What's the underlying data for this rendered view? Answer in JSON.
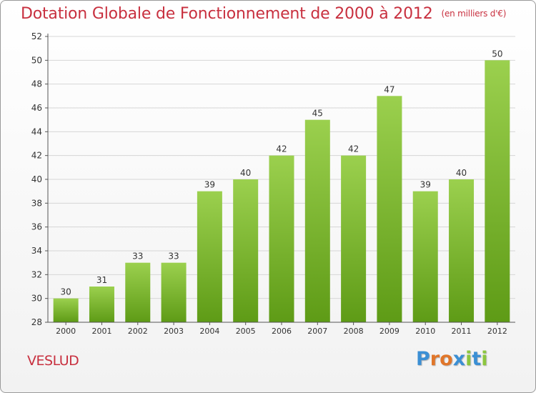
{
  "title": "Dotation Globale de Fonctionnement de 2000 à 2012",
  "subtitle": "(en milliers d'€)",
  "commune": "VESLUD",
  "logo": {
    "text": "Proxiti",
    "letter_colors": [
      "#3b8fd4",
      "#e0762a",
      "#e0762a",
      "#3b8fd4",
      "#8cc63f",
      "#3b8fd4",
      "#8cc63f"
    ]
  },
  "chart_data": {
    "type": "bar",
    "title": "Dotation Globale de Fonctionnement de 2000 à 2012",
    "subtitle": "(en milliers d'€)",
    "xlabel": "",
    "ylabel": "",
    "categories": [
      "2000",
      "2001",
      "2002",
      "2003",
      "2004",
      "2005",
      "2006",
      "2007",
      "2008",
      "2009",
      "2010",
      "2011",
      "2012"
    ],
    "values": [
      30,
      31,
      33,
      33,
      39,
      40,
      42,
      45,
      42,
      47,
      39,
      40,
      50
    ],
    "data_labels": [
      "30",
      "31",
      "33",
      "33",
      "39",
      "40",
      "42",
      "45",
      "42",
      "47",
      "39",
      "40",
      "50"
    ],
    "ylim": [
      28,
      52
    ],
    "yticks": [
      28,
      30,
      32,
      34,
      36,
      38,
      40,
      42,
      44,
      46,
      48,
      50,
      52
    ],
    "ytick_labels": [
      "28",
      "30",
      "32",
      "34",
      "36",
      "38",
      "40",
      "42",
      "44",
      "46",
      "48",
      "50",
      "52"
    ],
    "grid": true,
    "bar_color_top": "#9bd04e",
    "bar_color_bottom": "#5e9b16",
    "grid_color": "#d6d6d6"
  }
}
